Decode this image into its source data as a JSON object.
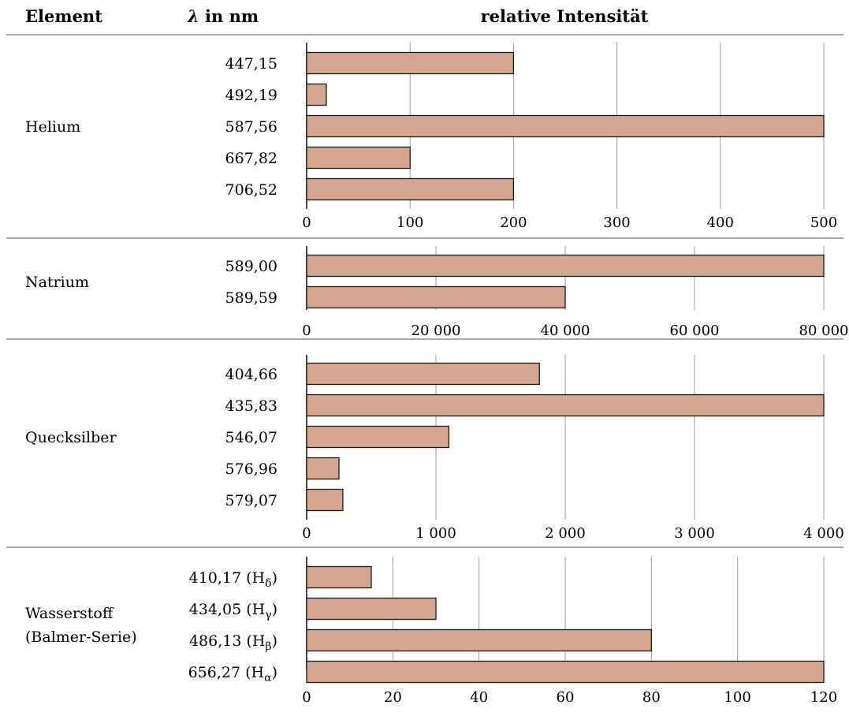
{
  "header": {
    "col_element": "Element",
    "col_lambda_symbol": "λ",
    "col_lambda_unit": " in nm",
    "col_intensity": "relative Intensität"
  },
  "colors": {
    "bar_fill": "#d4a690",
    "bar_stroke": "#1a1a1a",
    "grid": "#9a9a9a",
    "axis": "#1a1a1a",
    "rule": "#555555"
  },
  "chart_data": [
    {
      "type": "bar",
      "element": [
        "Helium"
      ],
      "categories": [
        "447,15",
        "492,19",
        "587,56",
        "667,82",
        "706,52"
      ],
      "values": [
        200,
        19,
        500,
        100,
        200
      ],
      "xlim": [
        0,
        500
      ],
      "ticks": [
        0,
        100,
        200,
        300,
        400,
        500
      ],
      "tick_labels": [
        "0",
        "100",
        "200",
        "300",
        "400",
        "500"
      ]
    },
    {
      "type": "bar",
      "element": [
        "Natrium"
      ],
      "categories": [
        "589,00",
        "589,59"
      ],
      "values": [
        80000,
        40000
      ],
      "xlim": [
        0,
        80000
      ],
      "ticks": [
        0,
        20000,
        40000,
        60000,
        80000
      ],
      "tick_labels": [
        "0",
        "20 000",
        "40 000",
        "60 000",
        "80 000"
      ]
    },
    {
      "type": "bar",
      "element": [
        "Quecksilber"
      ],
      "categories": [
        "404,66",
        "435,83",
        "546,07",
        "576,96",
        "579,07"
      ],
      "values": [
        1800,
        4000,
        1100,
        250,
        280
      ],
      "xlim": [
        0,
        4000
      ],
      "ticks": [
        0,
        1000,
        2000,
        3000,
        4000
      ],
      "tick_labels": [
        "0",
        "1 000",
        "2 000",
        "3 000",
        "4 000"
      ]
    },
    {
      "type": "bar",
      "element": [
        "Wasserstoff",
        "(Balmer-Serie)"
      ],
      "categories": [
        "410,17 (Hδ)",
        "434,05 (Hγ)",
        "486,13 (Hβ)",
        "656,27 (Hα)"
      ],
      "category_parts": [
        [
          "410,17 (H",
          "δ",
          ")"
        ],
        [
          "434,05 (H",
          "γ",
          ")"
        ],
        [
          "486,13 (H",
          "β",
          ")"
        ],
        [
          "656,27 (H",
          "α",
          ")"
        ]
      ],
      "values": [
        15,
        30,
        80,
        120
      ],
      "xlim": [
        0,
        120
      ],
      "ticks": [
        0,
        20,
        40,
        60,
        80,
        100,
        120
      ],
      "tick_labels": [
        "0",
        "20",
        "40",
        "60",
        "80",
        "100",
        "120"
      ]
    }
  ]
}
